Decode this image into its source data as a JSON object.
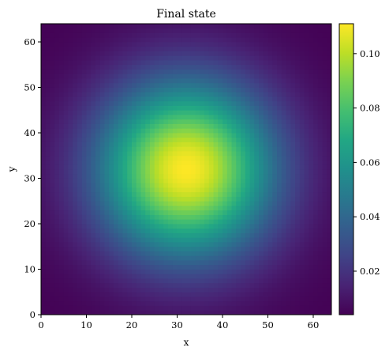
{
  "chart_data": {
    "type": "heatmap",
    "title": "Final state",
    "xlabel": "x",
    "ylabel": "y",
    "xlim": [
      0,
      64
    ],
    "ylim": [
      0,
      64
    ],
    "xticks": [
      0,
      10,
      20,
      30,
      40,
      50,
      60
    ],
    "yticks": [
      0,
      10,
      20,
      30,
      40,
      50,
      60
    ],
    "grid": false,
    "colormap": "viridis",
    "grid_size": [
      64,
      64
    ],
    "field": {
      "shape": "radial gaussian",
      "center": [
        32,
        32
      ],
      "sigma": 13.5,
      "peak": 0.111,
      "min": 0.004
    },
    "colorbar": {
      "range": [
        0.004,
        0.111
      ],
      "ticks": [
        0.02,
        0.04,
        0.06,
        0.08,
        0.1
      ],
      "tick_labels": [
        "0.02",
        "0.04",
        "0.06",
        "0.08",
        "0.10"
      ]
    }
  }
}
